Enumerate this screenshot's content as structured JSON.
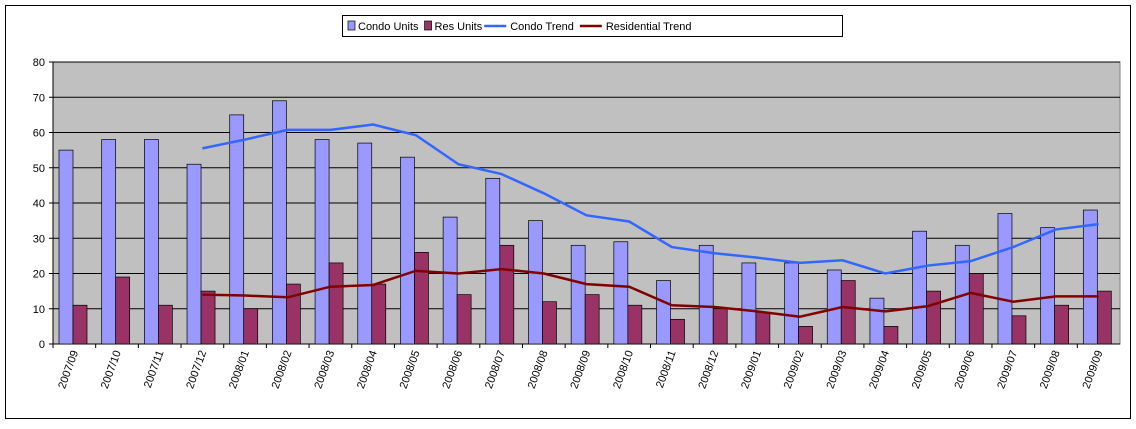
{
  "chart_data": {
    "type": "bar",
    "categories": [
      "2007/09",
      "2007/10",
      "2007/11",
      "2007/12",
      "2008/01",
      "2008/02",
      "2008/03",
      "2008/04",
      "2008/05",
      "2008/06",
      "2008/07",
      "2008/08",
      "2008/09",
      "2008/10",
      "2008/11",
      "2008/12",
      "2009/01",
      "2009/02",
      "2009/03",
      "2009/04",
      "2009/05",
      "2009/06",
      "2009/07",
      "2009/08",
      "2009/09"
    ],
    "series": [
      {
        "name": "Condo Units",
        "type": "bar",
        "color": "#9999ff",
        "values": [
          55,
          58,
          58,
          51,
          65,
          69,
          58,
          57,
          53,
          36,
          47,
          35,
          28,
          29,
          18,
          28,
          23,
          23,
          21,
          13,
          32,
          28,
          37,
          33,
          38
        ]
      },
      {
        "name": "Res Units",
        "type": "bar",
        "color": "#993366",
        "values": [
          11,
          19,
          11,
          15,
          10,
          17,
          23,
          17,
          26,
          14,
          28,
          12,
          14,
          11,
          7,
          10,
          9,
          5,
          18,
          5,
          15,
          20,
          8,
          11,
          15
        ]
      },
      {
        "name": "Condo Trend",
        "type": "line",
        "color": "#3366ff",
        "values": [
          null,
          null,
          null,
          55.5,
          58,
          60.75,
          60.75,
          62.25,
          59.25,
          51,
          48.25,
          42.75,
          36.5,
          34.75,
          27.5,
          25.75,
          24.5,
          23,
          23.75,
          20,
          22.25,
          23.5,
          27.5,
          32.5,
          34
        ]
      },
      {
        "name": "Residential Trend",
        "type": "line",
        "color": "#800000",
        "values": [
          null,
          null,
          null,
          14,
          13.75,
          13.25,
          16.25,
          16.75,
          20.75,
          20,
          21.25,
          20,
          17,
          16.25,
          11,
          10.5,
          9.25,
          7.75,
          10.5,
          9.25,
          10.75,
          14.5,
          12,
          13.5,
          13.5
        ]
      }
    ],
    "ylim": [
      0,
      80
    ],
    "yticks": [
      0,
      10,
      20,
      30,
      40,
      50,
      60,
      70,
      80
    ],
    "grid": true
  }
}
